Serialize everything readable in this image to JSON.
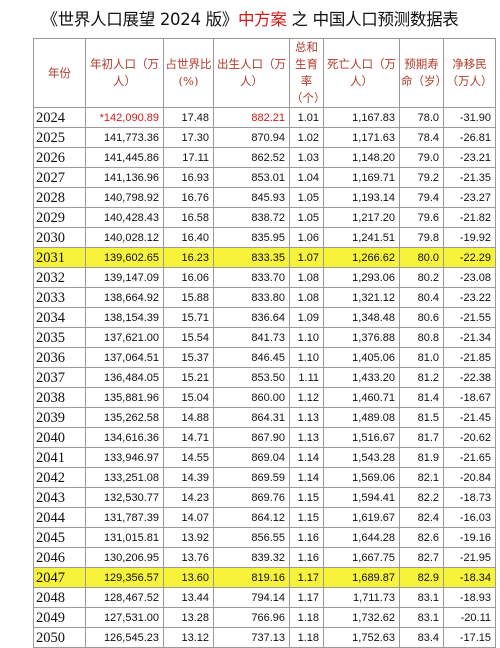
{
  "title": {
    "pre": "《世界人口展望 2024 版》",
    "highlight": "中方案",
    "post": " 之 中国人口预测数据表"
  },
  "header": [
    "年份",
    "年初人口（万人）",
    "占世界比 (%)",
    "出生人口（万人）",
    "总和生育率（个）",
    "死亡人口（万人）",
    "预期寿命（岁）",
    "净移民（万人）"
  ],
  "rows": [
    {
      "year": "2024",
      "pop": "*142,090.89",
      "share": "17.48",
      "births": "882.21",
      "tfr": "1.01",
      "deaths": "1,167.83",
      "life": "78.0",
      "mig": "-31.90"
    },
    {
      "year": "2025",
      "pop": "141,773.36",
      "share": "17.30",
      "births": "870.94",
      "tfr": "1.02",
      "deaths": "1,171.63",
      "life": "78.4",
      "mig": "-26.81"
    },
    {
      "year": "2026",
      "pop": "141,445.86",
      "share": "17.11",
      "births": "862.52",
      "tfr": "1.03",
      "deaths": "1,148.20",
      "life": "79.0",
      "mig": "-23.21"
    },
    {
      "year": "2027",
      "pop": "141,136.96",
      "share": "16.93",
      "births": "853.01",
      "tfr": "1.04",
      "deaths": "1,169.71",
      "life": "79.2",
      "mig": "-21.35"
    },
    {
      "year": "2028",
      "pop": "140,798.92",
      "share": "16.76",
      "births": "845.93",
      "tfr": "1.05",
      "deaths": "1,193.14",
      "life": "79.4",
      "mig": "-23.27"
    },
    {
      "year": "2029",
      "pop": "140,428.43",
      "share": "16.58",
      "births": "838.72",
      "tfr": "1.05",
      "deaths": "1,217.20",
      "life": "79.6",
      "mig": "-21.82"
    },
    {
      "year": "2030",
      "pop": "140,028.12",
      "share": "16.40",
      "births": "835.95",
      "tfr": "1.06",
      "deaths": "1,241.51",
      "life": "79.8",
      "mig": "-19.92"
    },
    {
      "year": "2031",
      "pop": "139,602.65",
      "share": "16.23",
      "births": "833.35",
      "tfr": "1.07",
      "deaths": "1,266.62",
      "life": "80.0",
      "mig": "-22.29",
      "highlight": true
    },
    {
      "year": "2032",
      "pop": "139,147.09",
      "share": "16.06",
      "births": "833.70",
      "tfr": "1.08",
      "deaths": "1,293.06",
      "life": "80.2",
      "mig": "-23.08"
    },
    {
      "year": "2033",
      "pop": "138,664.92",
      "share": "15.88",
      "births": "833.80",
      "tfr": "1.08",
      "deaths": "1,321.12",
      "life": "80.4",
      "mig": "-23.22"
    },
    {
      "year": "2034",
      "pop": "138,154.39",
      "share": "15.71",
      "births": "836.64",
      "tfr": "1.09",
      "deaths": "1,348.48",
      "life": "80.6",
      "mig": "-21.55"
    },
    {
      "year": "2035",
      "pop": "137,621.00",
      "share": "15.54",
      "births": "841.73",
      "tfr": "1.10",
      "deaths": "1,376.88",
      "life": "80.8",
      "mig": "-21.34"
    },
    {
      "year": "2036",
      "pop": "137,064.51",
      "share": "15.37",
      "births": "846.45",
      "tfr": "1.10",
      "deaths": "1,405.06",
      "life": "81.0",
      "mig": "-21.85"
    },
    {
      "year": "2037",
      "pop": "136,484.05",
      "share": "15.21",
      "births": "853.50",
      "tfr": "1.11",
      "deaths": "1,433.20",
      "life": "81.2",
      "mig": "-22.38"
    },
    {
      "year": "2038",
      "pop": "135,881.96",
      "share": "15.04",
      "births": "860.00",
      "tfr": "1.12",
      "deaths": "1,460.71",
      "life": "81.4",
      "mig": "-18.67"
    },
    {
      "year": "2039",
      "pop": "135,262.58",
      "share": "14.88",
      "births": "864.31",
      "tfr": "1.13",
      "deaths": "1,489.08",
      "life": "81.5",
      "mig": "-21.45"
    },
    {
      "year": "2040",
      "pop": "134,616.36",
      "share": "14.71",
      "births": "867.90",
      "tfr": "1.13",
      "deaths": "1,516.67",
      "life": "81.7",
      "mig": "-20.62"
    },
    {
      "year": "2041",
      "pop": "133,946.97",
      "share": "14.55",
      "births": "869.04",
      "tfr": "1.14",
      "deaths": "1,543.28",
      "life": "81.9",
      "mig": "-21.65"
    },
    {
      "year": "2042",
      "pop": "133,251.08",
      "share": "14.39",
      "births": "869.59",
      "tfr": "1.14",
      "deaths": "1,569.06",
      "life": "82.1",
      "mig": "-20.84"
    },
    {
      "year": "2043",
      "pop": "132,530.77",
      "share": "14.23",
      "births": "869.76",
      "tfr": "1.15",
      "deaths": "1,594.41",
      "life": "82.2",
      "mig": "-18.73"
    },
    {
      "year": "2044",
      "pop": "131,787.39",
      "share": "14.07",
      "births": "864.12",
      "tfr": "1.15",
      "deaths": "1,619.67",
      "life": "82.4",
      "mig": "-16.03"
    },
    {
      "year": "2045",
      "pop": "131,015.81",
      "share": "13.92",
      "births": "856.55",
      "tfr": "1.16",
      "deaths": "1,644.28",
      "life": "82.6",
      "mig": "-19.16"
    },
    {
      "year": "2046",
      "pop": "130,206.95",
      "share": "13.76",
      "births": "839.32",
      "tfr": "1.16",
      "deaths": "1,667.75",
      "life": "82.7",
      "mig": "-21.95"
    },
    {
      "year": "2047",
      "pop": "129,356.57",
      "share": "13.60",
      "births": "819.16",
      "tfr": "1.17",
      "deaths": "1,689.87",
      "life": "82.9",
      "mig": "-18.34",
      "highlight": true
    },
    {
      "year": "2048",
      "pop": "128,467.52",
      "share": "13.44",
      "births": "794.14",
      "tfr": "1.17",
      "deaths": "1,711.73",
      "life": "83.1",
      "mig": "-18.93"
    },
    {
      "year": "2049",
      "pop": "127,531.00",
      "share": "13.28",
      "births": "766.96",
      "tfr": "1.18",
      "deaths": "1,732.62",
      "life": "83.1",
      "mig": "-20.11"
    },
    {
      "year": "2050",
      "pop": "126,545.23",
      "share": "13.12",
      "births": "737.13",
      "tfr": "1.18",
      "deaths": "1,752.63",
      "life": "83.4",
      "mig": "-17.15"
    }
  ],
  "colors": {
    "title_highlight": "#d21a1a",
    "row_highlight": "#f7f23a",
    "header_text": "#b23a2a"
  }
}
